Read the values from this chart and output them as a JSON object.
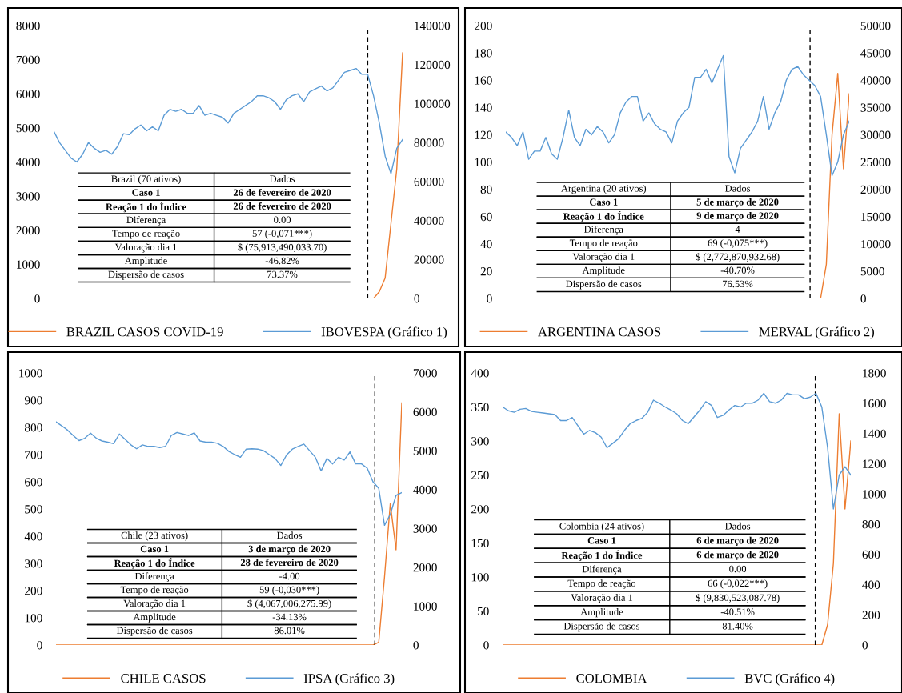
{
  "chart_data": [
    {
      "type": "line",
      "categories": [
        null,
        null,
        null,
        null,
        null,
        null,
        null,
        null,
        null,
        null,
        null,
        null,
        null,
        null,
        null,
        null,
        null,
        null,
        null,
        null,
        null,
        null,
        null,
        null,
        null,
        null,
        null,
        null,
        null,
        null,
        null,
        null,
        null,
        null,
        null,
        null,
        null,
        null,
        null,
        null,
        null,
        null,
        null,
        null,
        null,
        null,
        null,
        null,
        null,
        null,
        null,
        null,
        null,
        null,
        null,
        null,
        null,
        null,
        null,
        null,
        null
      ],
      "series": [
        {
          "name": "BRAZIL CASOS COVID-19",
          "color": "#ed7d31",
          "values": [
            0,
            0,
            0,
            0,
            0,
            0,
            0,
            0,
            0,
            0,
            0,
            0,
            0,
            0,
            0,
            0,
            0,
            0,
            0,
            0,
            0,
            0,
            0,
            0,
            0,
            0,
            0,
            0,
            0,
            0,
            0,
            0,
            0,
            0,
            0,
            0,
            0,
            0,
            0,
            0,
            0,
            0,
            0,
            0,
            0,
            0,
            0,
            0,
            0,
            0,
            0,
            0,
            0,
            0,
            0,
            0,
            200,
            600,
            2200,
            3800,
            7200
          ]
        },
        {
          "name": "IBOVESPA (Gráfico 1)",
          "color": "#5b9bd5",
          "axis": "y2",
          "values": [
            86000,
            80000,
            76000,
            72000,
            70000,
            74000,
            80000,
            77000,
            75000,
            76000,
            74000,
            78000,
            84500,
            84000,
            87000,
            89000,
            86000,
            88000,
            86000,
            94000,
            97000,
            96000,
            97000,
            95000,
            95000,
            99000,
            94000,
            95000,
            94000,
            93000,
            90000,
            95000,
            97000,
            99000,
            101000,
            104000,
            104000,
            103000,
            101000,
            97000,
            102000,
            104000,
            105000,
            101000,
            106000,
            107500,
            109000,
            106500,
            108000,
            112000,
            116000,
            117000,
            118000,
            115000,
            115000,
            104000,
            90000,
            73000,
            64000,
            77000,
            81500
          ]
        }
      ],
      "ylim": [
        0,
        8000
      ],
      "yticks": [
        0,
        1000,
        2000,
        3000,
        4000,
        5000,
        6000,
        7000,
        8000
      ],
      "y2lim": [
        0,
        140000
      ],
      "y2ticks": [
        0,
        20000,
        40000,
        60000,
        80000,
        100000,
        120000,
        140000
      ],
      "legend": "bottom",
      "annotations": [
        "Brazil (70 ativos)",
        "Dados",
        "Caso 1",
        "26 de fevereiro de 2020",
        "Reação 1 do Índice",
        "26 de fevereiro de 2020",
        "Diferença",
        "0.00",
        "Tempo de reação",
        "57 (-0,071***)",
        "Valoração dia 1",
        "$ (75,913,490,033.70)",
        "Amplitude",
        "-46.82%",
        "Dispersão de casos",
        "73.37%"
      ]
    },
    {
      "type": "line",
      "categories": [
        null,
        null,
        null,
        null,
        null,
        null,
        null,
        null,
        null,
        null,
        null,
        null,
        null,
        null,
        null,
        null,
        null,
        null,
        null,
        null,
        null,
        null,
        null,
        null,
        null,
        null,
        null,
        null,
        null,
        null,
        null,
        null,
        null,
        null,
        null,
        null,
        null,
        null,
        null,
        null,
        null,
        null,
        null,
        null,
        null,
        null,
        null,
        null,
        null,
        null,
        null,
        null,
        null,
        null,
        null,
        null,
        null,
        null,
        null,
        null,
        null
      ],
      "series": [
        {
          "name": "ARGENTINA CASOS",
          "color": "#ed7d31",
          "values": [
            0,
            0,
            0,
            0,
            0,
            0,
            0,
            0,
            0,
            0,
            0,
            0,
            0,
            0,
            0,
            0,
            0,
            0,
            0,
            0,
            0,
            0,
            0,
            0,
            0,
            0,
            0,
            0,
            0,
            0,
            0,
            0,
            0,
            0,
            0,
            0,
            0,
            0,
            0,
            0,
            0,
            0,
            0,
            0,
            0,
            0,
            0,
            0,
            0,
            0,
            0,
            0,
            0,
            0,
            0,
            0,
            25,
            120,
            165,
            95,
            150
          ]
        },
        {
          "name": "MERVAL (Gráfico 2)",
          "color": "#5b9bd5",
          "axis": "y2",
          "values": [
            30500,
            29500,
            28000,
            30500,
            25500,
            27000,
            27000,
            29500,
            26500,
            25500,
            29500,
            34500,
            29500,
            28000,
            31000,
            30000,
            31500,
            30500,
            28500,
            30000,
            34000,
            36000,
            37000,
            37000,
            32500,
            34000,
            32000,
            31000,
            30500,
            28500,
            32500,
            34000,
            35000,
            40500,
            40500,
            42000,
            39500,
            42000,
            44500,
            26000,
            23000,
            27500,
            29000,
            30500,
            32500,
            37000,
            31000,
            34000,
            36000,
            40000,
            42000,
            42500,
            41000,
            40000,
            39000,
            37000,
            30000,
            22500,
            25000,
            30000,
            32500
          ]
        }
      ],
      "ylim": [
        0,
        200
      ],
      "yticks": [
        0,
        20,
        40,
        60,
        80,
        100,
        120,
        140,
        160,
        180,
        200
      ],
      "y2lim": [
        0,
        50000
      ],
      "y2ticks": [
        0,
        5000,
        10000,
        15000,
        20000,
        25000,
        30000,
        35000,
        40000,
        45000,
        50000
      ],
      "legend": "bottom",
      "annotations": [
        "Argentina (20 ativos)",
        "Dados",
        "Caso 1",
        "5 de março de 2020",
        "Reação 1 do Índice",
        "9 de março de 2020",
        "Diferença",
        "4",
        "Tempo de reação",
        "69 (-0,075***)",
        "Valoração dia 1",
        "$ (2,772,870,932.68)",
        "Amplitude",
        "-40.70%",
        "Dispersão de casos",
        "76.53%"
      ]
    },
    {
      "type": "line",
      "categories": [
        null,
        null,
        null,
        null,
        null,
        null,
        null,
        null,
        null,
        null,
        null,
        null,
        null,
        null,
        null,
        null,
        null,
        null,
        null,
        null,
        null,
        null,
        null,
        null,
        null,
        null,
        null,
        null,
        null,
        null,
        null,
        null,
        null,
        null,
        null,
        null,
        null,
        null,
        null,
        null,
        null,
        null,
        null,
        null,
        null,
        null,
        null,
        null,
        null,
        null,
        null,
        null,
        null,
        null,
        null,
        null,
        null,
        null,
        null,
        null,
        null
      ],
      "series": [
        {
          "name": "CHILE CASOS",
          "color": "#ed7d31",
          "values": [
            0,
            0,
            0,
            0,
            0,
            0,
            0,
            0,
            0,
            0,
            0,
            0,
            0,
            0,
            0,
            0,
            0,
            0,
            0,
            0,
            0,
            0,
            0,
            0,
            0,
            0,
            0,
            0,
            0,
            0,
            0,
            0,
            0,
            0,
            0,
            0,
            0,
            0,
            0,
            0,
            0,
            0,
            0,
            0,
            0,
            0,
            0,
            0,
            0,
            0,
            0,
            0,
            0,
            0,
            0,
            0,
            10,
            250,
            520,
            350,
            890
          ]
        },
        {
          "name": "IPSA (Gráfico 3)",
          "color": "#5b9bd5",
          "axis": "y2",
          "values": [
            5740,
            5640,
            5530,
            5390,
            5260,
            5320,
            5450,
            5320,
            5250,
            5220,
            5180,
            5430,
            5290,
            5150,
            5050,
            5150,
            5110,
            5110,
            5080,
            5110,
            5390,
            5470,
            5430,
            5390,
            5460,
            5250,
            5220,
            5220,
            5190,
            5110,
            4980,
            4900,
            4830,
            5040,
            5050,
            5040,
            5000,
            4900,
            4800,
            4620,
            4890,
            5040,
            5110,
            5170,
            5000,
            4830,
            4480,
            4800,
            4660,
            4830,
            4760,
            4970,
            4660,
            4660,
            4550,
            4200,
            4030,
            3080,
            3360,
            3850,
            3920
          ]
        }
      ],
      "ylim": [
        0,
        1000
      ],
      "yticks": [
        0,
        100,
        200,
        300,
        400,
        500,
        600,
        700,
        800,
        900,
        1000
      ],
      "y2lim": [
        0,
        7000
      ],
      "y2ticks": [
        0,
        1000,
        2000,
        3000,
        4000,
        5000,
        6000,
        7000
      ],
      "legend": "bottom",
      "annotations": [
        "Chile (23 ativos)",
        "Dados",
        "Caso 1",
        "3 de março de 2020",
        "Reação 1 do Índice",
        "28 de fevereiro de 2020",
        "Diferença",
        "-4.00",
        "Tempo de reação",
        "59 (-0,030***)",
        "Valoração dia 1",
        "$ (4,067,006,275.99)",
        "Amplitude",
        "-34.13%",
        "Dispersão de casos",
        "86.01%"
      ]
    },
    {
      "type": "line",
      "categories": [
        null,
        null,
        null,
        null,
        null,
        null,
        null,
        null,
        null,
        null,
        null,
        null,
        null,
        null,
        null,
        null,
        null,
        null,
        null,
        null,
        null,
        null,
        null,
        null,
        null,
        null,
        null,
        null,
        null,
        null,
        null,
        null,
        null,
        null,
        null,
        null,
        null,
        null,
        null,
        null,
        null,
        null,
        null,
        null,
        null,
        null,
        null,
        null,
        null,
        null,
        null,
        null,
        null,
        null,
        null,
        null,
        null,
        null,
        null,
        null,
        null
      ],
      "series": [
        {
          "name": "COLOMBIA",
          "color": "#ed7d31",
          "values": [
            0,
            0,
            0,
            0,
            0,
            0,
            0,
            0,
            0,
            0,
            0,
            0,
            0,
            0,
            0,
            0,
            0,
            0,
            0,
            0,
            0,
            0,
            0,
            0,
            0,
            0,
            0,
            0,
            0,
            0,
            0,
            0,
            0,
            0,
            0,
            0,
            0,
            0,
            0,
            0,
            0,
            0,
            0,
            0,
            0,
            0,
            0,
            0,
            0,
            0,
            0,
            0,
            0,
            0,
            0,
            0,
            30,
            120,
            340,
            200,
            300
          ]
        },
        {
          "name": "BVC (Gráfico 4)",
          "color": "#5b9bd5",
          "axis": "y2",
          "values": [
            1575,
            1550,
            1540,
            1560,
            1565,
            1545,
            1540,
            1535,
            1530,
            1525,
            1485,
            1485,
            1505,
            1450,
            1395,
            1420,
            1405,
            1375,
            1305,
            1335,
            1365,
            1420,
            1465,
            1485,
            1500,
            1540,
            1620,
            1600,
            1575,
            1555,
            1530,
            1485,
            1465,
            1510,
            1555,
            1610,
            1585,
            1505,
            1520,
            1555,
            1585,
            1575,
            1600,
            1600,
            1620,
            1665,
            1610,
            1600,
            1620,
            1665,
            1655,
            1655,
            1630,
            1640,
            1665,
            1575,
            1305,
            900,
            1125,
            1180,
            1125
          ]
        }
      ],
      "ylim": [
        0,
        400
      ],
      "yticks": [
        0,
        50,
        100,
        150,
        200,
        250,
        300,
        350,
        400
      ],
      "y2lim": [
        0,
        1800
      ],
      "y2ticks": [
        0,
        200,
        400,
        600,
        800,
        1000,
        1200,
        1400,
        1600,
        1800
      ],
      "legend": "bottom",
      "annotations": [
        "Colombia (24 ativos)",
        "Dados",
        "Caso 1",
        "6 de março de 2020",
        "Reação 1 do Índice",
        "6 de março de 2020",
        "Diferença",
        "0.00",
        "Tempo de reação",
        "66 (-0,022***)",
        "Valoração dia 1",
        "$ (9,830,523,087.78)",
        "Amplitude",
        "-40.51%",
        "Dispersão de casos",
        "81.40%"
      ]
    }
  ]
}
